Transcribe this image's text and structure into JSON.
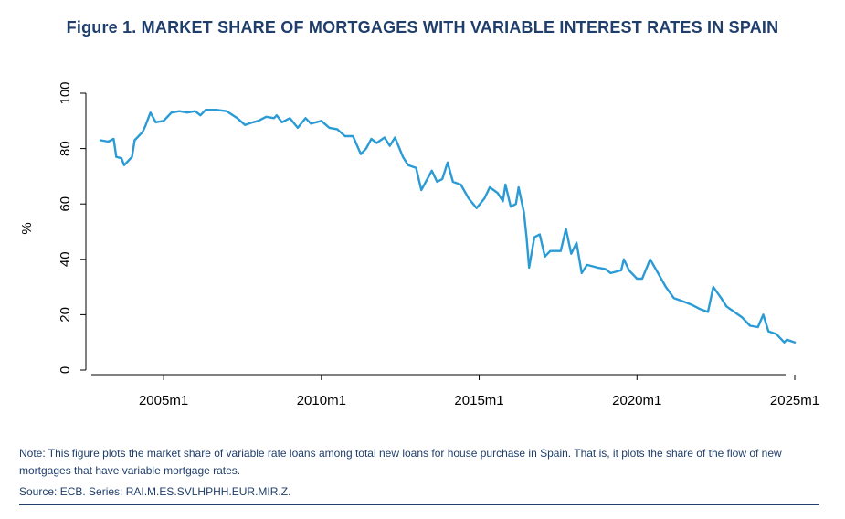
{
  "figure_title": "Figure 1. MARKET SHARE OF MORTGAGES WITH VARIABLE INTEREST RATES IN SPAIN",
  "note": "Note: This figure plots the market share of variable rate loans among total new loans for house purchase in Spain. That is, it plots the share of the flow of new mortgages that have variable mortgage rates.",
  "source": "Source: ECB. Series: RAI.M.ES.SVLHPHH.EUR.MIR.Z.",
  "colors": {
    "line": "#2b9bd6",
    "title": "#1f3e6b",
    "axis": "#000000"
  },
  "chart_data": {
    "type": "line",
    "title": "Figure 1. MARKET SHARE OF MORTGAGES WITH VARIABLE INTEREST RATES IN SPAIN",
    "xlabel": "",
    "ylabel": "%",
    "ylim": [
      0,
      100
    ],
    "yticks": [
      0,
      20,
      40,
      60,
      80,
      100
    ],
    "xticks": [
      "2005m1",
      "2010m1",
      "2015m1",
      "2020m1",
      "2025m1"
    ],
    "xlim": [
      "2003m1",
      "2025m1"
    ],
    "grid": false,
    "legend": "none",
    "series": [
      {
        "points": [
          [
            "2003m1",
            83
          ],
          [
            "2003m4",
            82.5
          ],
          [
            "2003m6",
            83.5
          ],
          [
            "2003m7",
            77
          ],
          [
            "2003m9",
            76.5
          ],
          [
            "2003m10",
            74
          ],
          [
            "2004m1",
            77
          ],
          [
            "2004m2",
            83
          ],
          [
            "2004m5",
            86
          ],
          [
            "2004m6",
            88
          ],
          [
            "2004m8",
            93
          ],
          [
            "2004m10",
            89.5
          ],
          [
            "2005m1",
            90
          ],
          [
            "2005m4",
            93
          ],
          [
            "2005m7",
            93.5
          ],
          [
            "2005m10",
            93
          ],
          [
            "2006m1",
            93.5
          ],
          [
            "2006m3",
            92
          ],
          [
            "2006m5",
            94
          ],
          [
            "2006m9",
            94
          ],
          [
            "2007m1",
            93.5
          ],
          [
            "2007m5",
            91
          ],
          [
            "2007m8",
            88.5
          ],
          [
            "2007m11",
            89.5
          ],
          [
            "2008m1",
            90
          ],
          [
            "2008m4",
            91.5
          ],
          [
            "2008m7",
            91
          ],
          [
            "2008m8",
            92
          ],
          [
            "2008m10",
            89.5
          ],
          [
            "2009m1",
            91
          ],
          [
            "2009m4",
            87.5
          ],
          [
            "2009m7",
            91
          ],
          [
            "2009m9",
            89
          ],
          [
            "2010m1",
            90
          ],
          [
            "2010m4",
            87.5
          ],
          [
            "2010m7",
            87
          ],
          [
            "2010m10",
            84.5
          ],
          [
            "2011m1",
            84.5
          ],
          [
            "2011m4",
            78
          ],
          [
            "2011m6",
            80
          ],
          [
            "2011m8",
            83.5
          ],
          [
            "2011m10",
            82
          ],
          [
            "2012m1",
            84
          ],
          [
            "2012m3",
            81
          ],
          [
            "2012m5",
            84
          ],
          [
            "2012m8",
            77
          ],
          [
            "2012m10",
            74
          ],
          [
            "2013m1",
            73
          ],
          [
            "2013m3",
            65
          ],
          [
            "2013m7",
            72
          ],
          [
            "2013m9",
            68
          ],
          [
            "2013m11",
            69
          ],
          [
            "2014m1",
            75
          ],
          [
            "2014m3",
            68
          ],
          [
            "2014m6",
            67
          ],
          [
            "2014m9",
            62
          ],
          [
            "2014m12",
            58.5
          ],
          [
            "2015m3",
            62
          ],
          [
            "2015m5",
            66
          ],
          [
            "2015m8",
            64
          ],
          [
            "2015m10",
            61
          ],
          [
            "2015m11",
            67
          ],
          [
            "2016m1",
            59
          ],
          [
            "2016m3",
            60
          ],
          [
            "2016m4",
            66
          ],
          [
            "2016m6",
            57
          ],
          [
            "2016m7",
            48
          ],
          [
            "2016m8",
            37
          ],
          [
            "2016m10",
            48
          ],
          [
            "2016m12",
            49
          ],
          [
            "2017m2",
            41
          ],
          [
            "2017m4",
            43
          ],
          [
            "2017m8",
            43
          ],
          [
            "2017m10",
            51
          ],
          [
            "2017m12",
            42
          ],
          [
            "2018m2",
            46
          ],
          [
            "2018m4",
            35
          ],
          [
            "2018m6",
            38
          ],
          [
            "2018m10",
            37
          ],
          [
            "2019m1",
            36.5
          ],
          [
            "2019m3",
            35
          ],
          [
            "2019m7",
            36
          ],
          [
            "2019m8",
            40
          ],
          [
            "2019m10",
            36
          ],
          [
            "2020m1",
            33
          ],
          [
            "2020m3",
            33
          ],
          [
            "2020m6",
            40
          ],
          [
            "2020m9",
            35
          ],
          [
            "2020m12",
            30
          ],
          [
            "2021m3",
            26
          ],
          [
            "2021m6",
            25
          ],
          [
            "2021m10",
            23.5
          ],
          [
            "2022m1",
            22
          ],
          [
            "2022m4",
            21
          ],
          [
            "2022m6",
            30
          ],
          [
            "2022m9",
            26
          ],
          [
            "2022m11",
            23
          ],
          [
            "2023m2",
            21
          ],
          [
            "2023m5",
            19
          ],
          [
            "2023m8",
            16
          ],
          [
            "2023m11",
            15.5
          ],
          [
            "2024m1",
            20
          ],
          [
            "2024m3",
            14
          ],
          [
            "2024m6",
            13
          ],
          [
            "2024m9",
            10
          ],
          [
            "2024m10",
            11
          ],
          [
            "2025m1",
            10
          ]
        ]
      }
    ]
  }
}
